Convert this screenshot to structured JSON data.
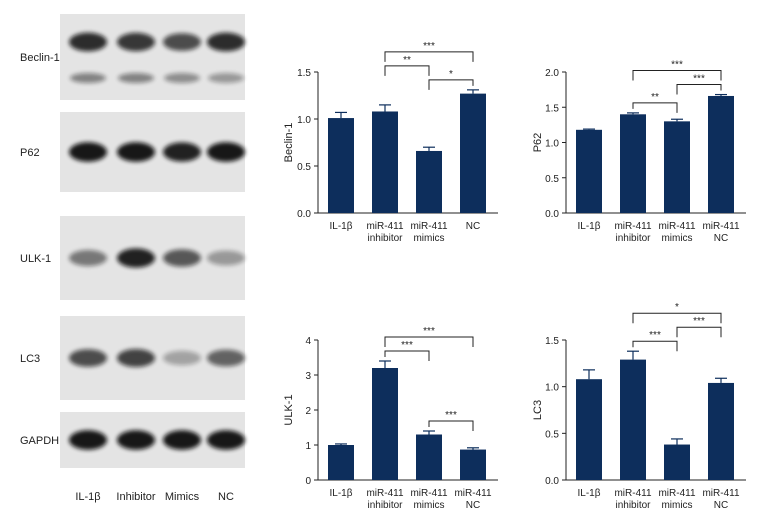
{
  "colors": {
    "bar": "#0d2e5c",
    "axis": "#222222",
    "blot_panel": "#e4e4e4",
    "band": "#111111"
  },
  "blots": {
    "lane_labels": [
      "IL-1β",
      "Inhibitor",
      "Mimics",
      "NC"
    ],
    "rows": [
      {
        "label": "Beclin-1",
        "band_intensity": [
          0.85,
          0.8,
          0.7,
          0.85
        ],
        "secondary_intensity": [
          0.45,
          0.45,
          0.4,
          0.35
        ]
      },
      {
        "label": "P62",
        "band_intensity": [
          0.95,
          0.95,
          0.9,
          0.95
        ]
      },
      {
        "label": "ULK-1",
        "band_intensity": [
          0.5,
          0.9,
          0.65,
          0.35
        ]
      },
      {
        "label": "LC3",
        "band_intensity": [
          0.7,
          0.75,
          0.3,
          0.6
        ]
      },
      {
        "label": "GAPDH",
        "band_intensity": [
          0.95,
          0.95,
          0.95,
          0.95
        ]
      }
    ]
  },
  "chart_data": [
    {
      "type": "bar",
      "ylabel": "Beclin-1",
      "ylim": [
        0,
        1.5
      ],
      "yticks": [
        "0.0",
        "0.5",
        "1.0",
        "1.5"
      ],
      "categories": [
        [
          "IL-1β"
        ],
        [
          "miR-411",
          "inhibitor"
        ],
        [
          "miR-411",
          "mimics"
        ],
        [
          "NC"
        ]
      ],
      "values": [
        1.01,
        1.08,
        0.66,
        1.27
      ],
      "errors": [
        0.06,
        0.07,
        0.04,
        0.04
      ],
      "significance": [
        {
          "from": 2,
          "to": 3,
          "label": "*"
        },
        {
          "from": 1,
          "to": 2,
          "label": "**"
        },
        {
          "from": 1,
          "to": 3,
          "label": "***"
        }
      ]
    },
    {
      "type": "bar",
      "ylabel": "P62",
      "ylim": [
        0,
        2.0
      ],
      "yticks": [
        "0.0",
        "0.5",
        "1.0",
        "1.5",
        "2.0"
      ],
      "categories": [
        [
          "IL-1β"
        ],
        [
          "miR-411",
          "inhibitor"
        ],
        [
          "miR-411",
          "mimics"
        ],
        [
          "miR-411",
          "NC"
        ]
      ],
      "values": [
        1.18,
        1.4,
        1.3,
        1.66
      ],
      "errors": [
        0.01,
        0.02,
        0.03,
        0.02
      ],
      "significance": [
        {
          "from": 1,
          "to": 2,
          "label": "**"
        },
        {
          "from": 2,
          "to": 3,
          "label": "***"
        },
        {
          "from": 1,
          "to": 3,
          "label": "***"
        }
      ]
    },
    {
      "type": "bar",
      "ylabel": "ULK-1",
      "ylim": [
        0,
        4
      ],
      "yticks": [
        "0",
        "1",
        "2",
        "3",
        "4"
      ],
      "categories": [
        [
          "IL-1β"
        ],
        [
          "miR-411",
          "inhibitor"
        ],
        [
          "miR-411",
          "mimics"
        ],
        [
          "miR-411",
          "NC"
        ]
      ],
      "values": [
        1.0,
        3.2,
        1.3,
        0.87
      ],
      "errors": [
        0.03,
        0.2,
        0.1,
        0.05
      ],
      "significance": [
        {
          "from": 2,
          "to": 3,
          "label": "***"
        },
        {
          "from": 1,
          "to": 2,
          "label": "***"
        },
        {
          "from": 1,
          "to": 3,
          "label": "***"
        }
      ]
    },
    {
      "type": "bar",
      "ylabel": "LC3",
      "ylim": [
        0,
        1.5
      ],
      "yticks": [
        "0.0",
        "0.5",
        "1.0",
        "1.5"
      ],
      "categories": [
        [
          "IL-1β"
        ],
        [
          "miR-411",
          "inhibitor"
        ],
        [
          "miR-411",
          "mimics"
        ],
        [
          "miR-411",
          "NC"
        ]
      ],
      "values": [
        1.08,
        1.29,
        0.38,
        1.04
      ],
      "errors": [
        0.1,
        0.09,
        0.06,
        0.05
      ],
      "significance": [
        {
          "from": 1,
          "to": 2,
          "label": "***"
        },
        {
          "from": 2,
          "to": 3,
          "label": "***"
        },
        {
          "from": 1,
          "to": 3,
          "label": "*"
        }
      ]
    }
  ]
}
